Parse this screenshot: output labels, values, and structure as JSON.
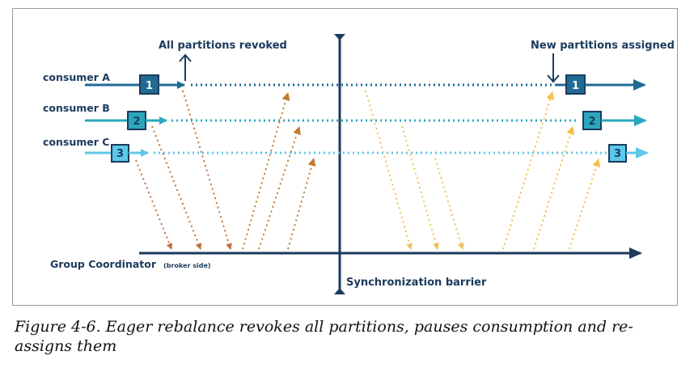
{
  "diagram": {
    "labels": {
      "revoked": "All partitions revoked",
      "assigned": "New partitions assigned",
      "barrier": "Synchronization barrier",
      "coordinator_main": "Group Coordinator",
      "coordinator_sub": "(broker side)"
    },
    "consumers": [
      {
        "name": "consumer A",
        "partition_before": "1",
        "partition_after": "1",
        "color": "#1f6b94"
      },
      {
        "name": "consumer B",
        "partition_before": "2",
        "partition_after": "2",
        "color": "#2aa7bd"
      },
      {
        "name": "consumer C",
        "partition_before": "3",
        "partition_after": "3",
        "color": "#5cc8ea"
      }
    ],
    "colors": {
      "navy": "#1b3a5c",
      "down_message": "#c0703a",
      "up_message_left": "#c07a30",
      "down_message_right": "#f0c060",
      "up_message_right": "#f5bd45"
    }
  },
  "caption": "Figure 4-6. Eager rebalance revokes all partitions, pauses consumption and re-assigns them"
}
